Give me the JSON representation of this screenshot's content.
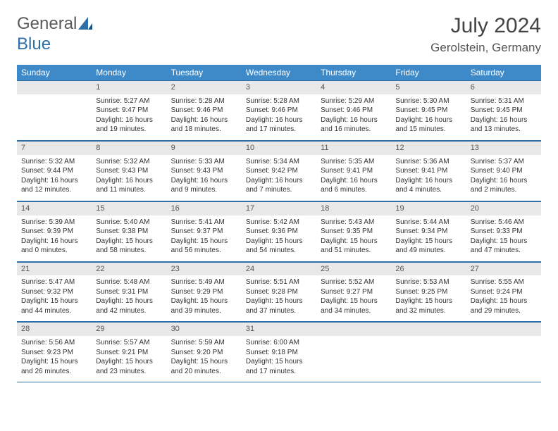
{
  "brand": {
    "word1": "General",
    "word2": "Blue"
  },
  "title": "July 2024",
  "location": "Gerolstein, Germany",
  "colors": {
    "header_bg": "#3e8ac8",
    "header_fg": "#ffffff",
    "rule": "#2f6fa8",
    "daynum_bg": "#e8e8e8",
    "text": "#333333"
  },
  "weekdays": [
    "Sunday",
    "Monday",
    "Tuesday",
    "Wednesday",
    "Thursday",
    "Friday",
    "Saturday"
  ],
  "weeks": [
    [
      null,
      {
        "n": "1",
        "sr": "Sunrise: 5:27 AM",
        "ss": "Sunset: 9:47 PM",
        "dl": "Daylight: 16 hours and 19 minutes."
      },
      {
        "n": "2",
        "sr": "Sunrise: 5:28 AM",
        "ss": "Sunset: 9:46 PM",
        "dl": "Daylight: 16 hours and 18 minutes."
      },
      {
        "n": "3",
        "sr": "Sunrise: 5:28 AM",
        "ss": "Sunset: 9:46 PM",
        "dl": "Daylight: 16 hours and 17 minutes."
      },
      {
        "n": "4",
        "sr": "Sunrise: 5:29 AM",
        "ss": "Sunset: 9:46 PM",
        "dl": "Daylight: 16 hours and 16 minutes."
      },
      {
        "n": "5",
        "sr": "Sunrise: 5:30 AM",
        "ss": "Sunset: 9:45 PM",
        "dl": "Daylight: 16 hours and 15 minutes."
      },
      {
        "n": "6",
        "sr": "Sunrise: 5:31 AM",
        "ss": "Sunset: 9:45 PM",
        "dl": "Daylight: 16 hours and 13 minutes."
      }
    ],
    [
      {
        "n": "7",
        "sr": "Sunrise: 5:32 AM",
        "ss": "Sunset: 9:44 PM",
        "dl": "Daylight: 16 hours and 12 minutes."
      },
      {
        "n": "8",
        "sr": "Sunrise: 5:32 AM",
        "ss": "Sunset: 9:43 PM",
        "dl": "Daylight: 16 hours and 11 minutes."
      },
      {
        "n": "9",
        "sr": "Sunrise: 5:33 AM",
        "ss": "Sunset: 9:43 PM",
        "dl": "Daylight: 16 hours and 9 minutes."
      },
      {
        "n": "10",
        "sr": "Sunrise: 5:34 AM",
        "ss": "Sunset: 9:42 PM",
        "dl": "Daylight: 16 hours and 7 minutes."
      },
      {
        "n": "11",
        "sr": "Sunrise: 5:35 AM",
        "ss": "Sunset: 9:41 PM",
        "dl": "Daylight: 16 hours and 6 minutes."
      },
      {
        "n": "12",
        "sr": "Sunrise: 5:36 AM",
        "ss": "Sunset: 9:41 PM",
        "dl": "Daylight: 16 hours and 4 minutes."
      },
      {
        "n": "13",
        "sr": "Sunrise: 5:37 AM",
        "ss": "Sunset: 9:40 PM",
        "dl": "Daylight: 16 hours and 2 minutes."
      }
    ],
    [
      {
        "n": "14",
        "sr": "Sunrise: 5:39 AM",
        "ss": "Sunset: 9:39 PM",
        "dl": "Daylight: 16 hours and 0 minutes."
      },
      {
        "n": "15",
        "sr": "Sunrise: 5:40 AM",
        "ss": "Sunset: 9:38 PM",
        "dl": "Daylight: 15 hours and 58 minutes."
      },
      {
        "n": "16",
        "sr": "Sunrise: 5:41 AM",
        "ss": "Sunset: 9:37 PM",
        "dl": "Daylight: 15 hours and 56 minutes."
      },
      {
        "n": "17",
        "sr": "Sunrise: 5:42 AM",
        "ss": "Sunset: 9:36 PM",
        "dl": "Daylight: 15 hours and 54 minutes."
      },
      {
        "n": "18",
        "sr": "Sunrise: 5:43 AM",
        "ss": "Sunset: 9:35 PM",
        "dl": "Daylight: 15 hours and 51 minutes."
      },
      {
        "n": "19",
        "sr": "Sunrise: 5:44 AM",
        "ss": "Sunset: 9:34 PM",
        "dl": "Daylight: 15 hours and 49 minutes."
      },
      {
        "n": "20",
        "sr": "Sunrise: 5:46 AM",
        "ss": "Sunset: 9:33 PM",
        "dl": "Daylight: 15 hours and 47 minutes."
      }
    ],
    [
      {
        "n": "21",
        "sr": "Sunrise: 5:47 AM",
        "ss": "Sunset: 9:32 PM",
        "dl": "Daylight: 15 hours and 44 minutes."
      },
      {
        "n": "22",
        "sr": "Sunrise: 5:48 AM",
        "ss": "Sunset: 9:31 PM",
        "dl": "Daylight: 15 hours and 42 minutes."
      },
      {
        "n": "23",
        "sr": "Sunrise: 5:49 AM",
        "ss": "Sunset: 9:29 PM",
        "dl": "Daylight: 15 hours and 39 minutes."
      },
      {
        "n": "24",
        "sr": "Sunrise: 5:51 AM",
        "ss": "Sunset: 9:28 PM",
        "dl": "Daylight: 15 hours and 37 minutes."
      },
      {
        "n": "25",
        "sr": "Sunrise: 5:52 AM",
        "ss": "Sunset: 9:27 PM",
        "dl": "Daylight: 15 hours and 34 minutes."
      },
      {
        "n": "26",
        "sr": "Sunrise: 5:53 AM",
        "ss": "Sunset: 9:25 PM",
        "dl": "Daylight: 15 hours and 32 minutes."
      },
      {
        "n": "27",
        "sr": "Sunrise: 5:55 AM",
        "ss": "Sunset: 9:24 PM",
        "dl": "Daylight: 15 hours and 29 minutes."
      }
    ],
    [
      {
        "n": "28",
        "sr": "Sunrise: 5:56 AM",
        "ss": "Sunset: 9:23 PM",
        "dl": "Daylight: 15 hours and 26 minutes."
      },
      {
        "n": "29",
        "sr": "Sunrise: 5:57 AM",
        "ss": "Sunset: 9:21 PM",
        "dl": "Daylight: 15 hours and 23 minutes."
      },
      {
        "n": "30",
        "sr": "Sunrise: 5:59 AM",
        "ss": "Sunset: 9:20 PM",
        "dl": "Daylight: 15 hours and 20 minutes."
      },
      {
        "n": "31",
        "sr": "Sunrise: 6:00 AM",
        "ss": "Sunset: 9:18 PM",
        "dl": "Daylight: 15 hours and 17 minutes."
      },
      null,
      null,
      null
    ]
  ]
}
